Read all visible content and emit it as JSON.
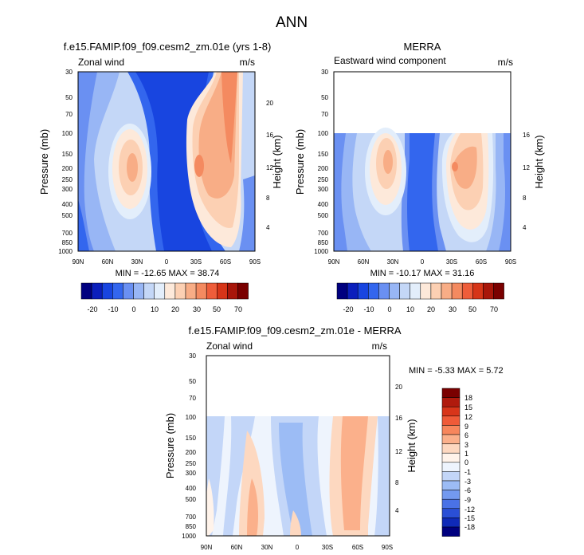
{
  "figure_title": "ANN",
  "chart_data": [
    {
      "type": "heatmap",
      "title": "f.e15.FAMIP.f09_f09.cesm2_zm.01e (yrs 1-8)",
      "left_label": "Zonal wind",
      "right_label": "m/s",
      "xlabel": "",
      "ylabel": "Pressure (mb)",
      "y2label": "Height (km)",
      "x_ticks": [
        "90N",
        "60N",
        "30N",
        "0",
        "30S",
        "60S",
        "90S"
      ],
      "y_ticks": [
        "30",
        "50",
        "70",
        "100",
        "150",
        "200",
        "250",
        "300",
        "400",
        "500",
        "700",
        "850",
        "1000"
      ],
      "y2_ticks": [
        "20",
        "16",
        "12",
        "8",
        "4"
      ],
      "stats": "MIN = -12.65  MAX = 38.74",
      "colorbar_labels": [
        "-20",
        "-10",
        "0",
        "10",
        "20",
        "30",
        "50",
        "70"
      ],
      "colorbar_colors": [
        "#00007f",
        "#0b1fbc",
        "#1845e0",
        "#3366ee",
        "#6a90f2",
        "#98b6f5",
        "#c4d7f7",
        "#e3eefb",
        "#fde9da",
        "#fcd0b3",
        "#f8ad86",
        "#f48a60",
        "#ee5d3a",
        "#d63518",
        "#a8160a",
        "#7a0000"
      ]
    },
    {
      "type": "heatmap",
      "title": "MERRA",
      "left_label": "Eastward wind component",
      "right_label": "m/s",
      "xlabel": "",
      "ylabel": "Pressure (mb)",
      "y2label": "Height (km)",
      "x_ticks": [
        "90N",
        "60N",
        "30N",
        "0",
        "30S",
        "60S",
        "90S"
      ],
      "y_ticks": [
        "30",
        "50",
        "70",
        "100",
        "150",
        "200",
        "250",
        "300",
        "400",
        "500",
        "700",
        "850",
        "1000"
      ],
      "y2_ticks": [
        "16",
        "12",
        "8",
        "4"
      ],
      "stats": "MIN = -10.17  MAX = 31.16",
      "colorbar_labels": [
        "-20",
        "-10",
        "0",
        "10",
        "20",
        "30",
        "50",
        "70"
      ],
      "colorbar_colors": [
        "#00007f",
        "#0b1fbc",
        "#1845e0",
        "#3366ee",
        "#6a90f2",
        "#98b6f5",
        "#c4d7f7",
        "#e3eefb",
        "#fde9da",
        "#fcd0b3",
        "#f8ad86",
        "#f48a60",
        "#ee5d3a",
        "#d63518",
        "#a8160a",
        "#7a0000"
      ]
    },
    {
      "type": "heatmap",
      "title": "f.e15.FAMIP.f09_f09.cesm2_zm.01e - MERRA",
      "left_label": "Zonal wind",
      "right_label": "m/s",
      "xlabel": "",
      "ylabel": "Pressure (mb)",
      "y2label": "Height (km)",
      "x_ticks": [
        "90N",
        "60N",
        "30N",
        "0",
        "30S",
        "60S",
        "90S"
      ],
      "y_ticks": [
        "30",
        "50",
        "70",
        "100",
        "150",
        "200",
        "250",
        "300",
        "400",
        "500",
        "700",
        "850",
        "1000"
      ],
      "y2_ticks": [
        "20",
        "16",
        "12",
        "8",
        "4"
      ],
      "stats": "MIN = -5.33  MAX =  5.72",
      "colorbar_labels": [
        "18",
        "15",
        "12",
        "9",
        "6",
        "3",
        "1",
        "0",
        "-1",
        "-3",
        "-6",
        "-9",
        "-12",
        "-15",
        "-18"
      ],
      "colorbar_colors": [
        "#7a0000",
        "#b01a0d",
        "#d8351a",
        "#ef5a38",
        "#f7865c",
        "#fbb08b",
        "#fdd8c0",
        "#fff3ea",
        "#eef4fd",
        "#c3d6f8",
        "#9cbcf5",
        "#7399ef",
        "#4a72e6",
        "#2a4fd6",
        "#0f2ab8",
        "#00007f"
      ]
    }
  ]
}
